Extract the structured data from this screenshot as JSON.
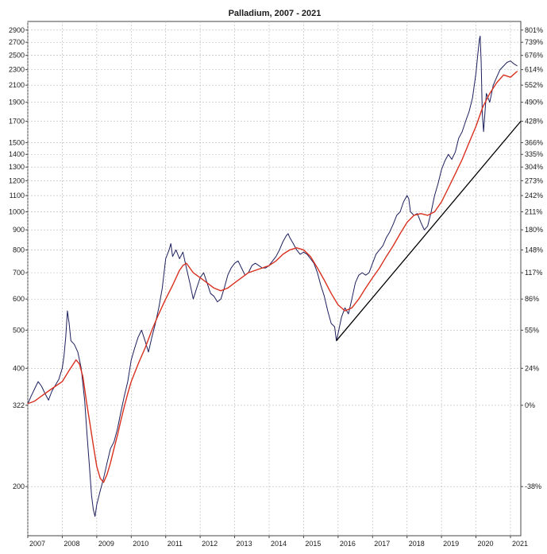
{
  "chart_data": {
    "type": "line",
    "title": "Palladium, 2007 - 2021",
    "y_scale": "log",
    "ylim": [
      150,
      3050
    ],
    "xlim": [
      2007.0,
      2021.3
    ],
    "grid": true,
    "x_ticks": [
      {
        "x": 2007,
        "label": "2007"
      },
      {
        "x": 2008,
        "label": "2008"
      },
      {
        "x": 2009,
        "label": "2009"
      },
      {
        "x": 2010,
        "label": "2010"
      },
      {
        "x": 2011,
        "label": "2011"
      },
      {
        "x": 2012,
        "label": "2012"
      },
      {
        "x": 2013,
        "label": "2013"
      },
      {
        "x": 2014,
        "label": "2014"
      },
      {
        "x": 2015,
        "label": "2015"
      },
      {
        "x": 2016,
        "label": "2016"
      },
      {
        "x": 2017,
        "label": "2017"
      },
      {
        "x": 2018,
        "label": "2018"
      },
      {
        "x": 2019,
        "label": "2019"
      },
      {
        "x": 2020,
        "label": "2020"
      },
      {
        "x": 2021,
        "label": "2021"
      }
    ],
    "y_ticks_left": [
      {
        "v": 2900,
        "label": "2900"
      },
      {
        "v": 2700,
        "label": "2700"
      },
      {
        "v": 2500,
        "label": "2500"
      },
      {
        "v": 2300,
        "label": "2300"
      },
      {
        "v": 2100,
        "label": "2100"
      },
      {
        "v": 1900,
        "label": "1900"
      },
      {
        "v": 1700,
        "label": "1700"
      },
      {
        "v": 1500,
        "label": "1500"
      },
      {
        "v": 1400,
        "label": "1400"
      },
      {
        "v": 1300,
        "label": "1300"
      },
      {
        "v": 1200,
        "label": "1200"
      },
      {
        "v": 1100,
        "label": "1100"
      },
      {
        "v": 1000,
        "label": "1000"
      },
      {
        "v": 900,
        "label": "900"
      },
      {
        "v": 800,
        "label": "800"
      },
      {
        "v": 700,
        "label": "700"
      },
      {
        "v": 600,
        "label": "600"
      },
      {
        "v": 500,
        "label": "500"
      },
      {
        "v": 400,
        "label": "400"
      },
      {
        "v": 322,
        "label": "322"
      },
      {
        "v": 200,
        "label": "200"
      }
    ],
    "y_ticks_right": [
      {
        "v": 2900,
        "label": "801%"
      },
      {
        "v": 2700,
        "label": "739%"
      },
      {
        "v": 2500,
        "label": "676%"
      },
      {
        "v": 2300,
        "label": "614%"
      },
      {
        "v": 2100,
        "label": "552%"
      },
      {
        "v": 1900,
        "label": "490%"
      },
      {
        "v": 1700,
        "label": "428%"
      },
      {
        "v": 1500,
        "label": "366%"
      },
      {
        "v": 1400,
        "label": "335%"
      },
      {
        "v": 1300,
        "label": "304%"
      },
      {
        "v": 1200,
        "label": "273%"
      },
      {
        "v": 1100,
        "label": "242%"
      },
      {
        "v": 1000,
        "label": "211%"
      },
      {
        "v": 900,
        "label": "180%"
      },
      {
        "v": 800,
        "label": "148%"
      },
      {
        "v": 700,
        "label": "117%"
      },
      {
        "v": 600,
        "label": "86%"
      },
      {
        "v": 500,
        "label": "55%"
      },
      {
        "v": 400,
        "label": "24%"
      },
      {
        "v": 322,
        "label": "0%"
      },
      {
        "v": 200,
        "label": "-38%"
      }
    ],
    "series": [
      {
        "color": "#1c1f5c",
        "points": [
          [
            2007.0,
            325
          ],
          [
            2007.1,
            340
          ],
          [
            2007.2,
            355
          ],
          [
            2007.3,
            370
          ],
          [
            2007.4,
            360
          ],
          [
            2007.5,
            345
          ],
          [
            2007.6,
            332
          ],
          [
            2007.7,
            350
          ],
          [
            2007.8,
            362
          ],
          [
            2007.9,
            375
          ],
          [
            2008.0,
            400
          ],
          [
            2008.05,
            430
          ],
          [
            2008.1,
            480
          ],
          [
            2008.15,
            560
          ],
          [
            2008.2,
            520
          ],
          [
            2008.25,
            470
          ],
          [
            2008.35,
            460
          ],
          [
            2008.45,
            440
          ],
          [
            2008.55,
            400
          ],
          [
            2008.65,
            330
          ],
          [
            2008.72,
            270
          ],
          [
            2008.78,
            230
          ],
          [
            2008.85,
            190
          ],
          [
            2008.9,
            175
          ],
          [
            2008.95,
            168
          ],
          [
            2009.0,
            180
          ],
          [
            2009.1,
            195
          ],
          [
            2009.2,
            210
          ],
          [
            2009.3,
            230
          ],
          [
            2009.4,
            250
          ],
          [
            2009.5,
            260
          ],
          [
            2009.6,
            280
          ],
          [
            2009.7,
            310
          ],
          [
            2009.8,
            340
          ],
          [
            2009.9,
            370
          ],
          [
            2010.0,
            420
          ],
          [
            2010.1,
            450
          ],
          [
            2010.2,
            480
          ],
          [
            2010.3,
            500
          ],
          [
            2010.4,
            470
          ],
          [
            2010.5,
            440
          ],
          [
            2010.6,
            480
          ],
          [
            2010.7,
            520
          ],
          [
            2010.8,
            570
          ],
          [
            2010.9,
            640
          ],
          [
            2011.0,
            760
          ],
          [
            2011.1,
            800
          ],
          [
            2011.15,
            830
          ],
          [
            2011.2,
            770
          ],
          [
            2011.3,
            800
          ],
          [
            2011.4,
            760
          ],
          [
            2011.5,
            790
          ],
          [
            2011.6,
            720
          ],
          [
            2011.7,
            660
          ],
          [
            2011.8,
            600
          ],
          [
            2011.9,
            640
          ],
          [
            2012.0,
            680
          ],
          [
            2012.1,
            700
          ],
          [
            2012.2,
            660
          ],
          [
            2012.3,
            620
          ],
          [
            2012.4,
            610
          ],
          [
            2012.5,
            590
          ],
          [
            2012.6,
            600
          ],
          [
            2012.7,
            640
          ],
          [
            2012.8,
            690
          ],
          [
            2012.9,
            720
          ],
          [
            2013.0,
            740
          ],
          [
            2013.1,
            750
          ],
          [
            2013.2,
            720
          ],
          [
            2013.3,
            690
          ],
          [
            2013.4,
            700
          ],
          [
            2013.5,
            730
          ],
          [
            2013.6,
            740
          ],
          [
            2013.7,
            730
          ],
          [
            2013.8,
            720
          ],
          [
            2013.9,
            720
          ],
          [
            2014.0,
            730
          ],
          [
            2014.1,
            750
          ],
          [
            2014.2,
            770
          ],
          [
            2014.3,
            800
          ],
          [
            2014.4,
            840
          ],
          [
            2014.5,
            870
          ],
          [
            2014.55,
            880
          ],
          [
            2014.6,
            860
          ],
          [
            2014.7,
            830
          ],
          [
            2014.8,
            800
          ],
          [
            2014.9,
            780
          ],
          [
            2015.0,
            790
          ],
          [
            2015.1,
            780
          ],
          [
            2015.2,
            760
          ],
          [
            2015.3,
            740
          ],
          [
            2015.4,
            700
          ],
          [
            2015.5,
            650
          ],
          [
            2015.6,
            610
          ],
          [
            2015.7,
            560
          ],
          [
            2015.8,
            520
          ],
          [
            2015.9,
            510
          ],
          [
            2015.95,
            470
          ],
          [
            2016.0,
            490
          ],
          [
            2016.1,
            540
          ],
          [
            2016.2,
            570
          ],
          [
            2016.3,
            550
          ],
          [
            2016.4,
            600
          ],
          [
            2016.5,
            660
          ],
          [
            2016.6,
            690
          ],
          [
            2016.7,
            700
          ],
          [
            2016.8,
            690
          ],
          [
            2016.9,
            700
          ],
          [
            2017.0,
            740
          ],
          [
            2017.1,
            780
          ],
          [
            2017.2,
            800
          ],
          [
            2017.3,
            820
          ],
          [
            2017.4,
            860
          ],
          [
            2017.5,
            890
          ],
          [
            2017.6,
            930
          ],
          [
            2017.7,
            980
          ],
          [
            2017.8,
            1000
          ],
          [
            2017.9,
            1060
          ],
          [
            2018.0,
            1100
          ],
          [
            2018.05,
            1080
          ],
          [
            2018.1,
            1000
          ],
          [
            2018.2,
            980
          ],
          [
            2018.3,
            990
          ],
          [
            2018.4,
            940
          ],
          [
            2018.5,
            900
          ],
          [
            2018.6,
            920
          ],
          [
            2018.7,
            1000
          ],
          [
            2018.8,
            1100
          ],
          [
            2018.9,
            1180
          ],
          [
            2019.0,
            1280
          ],
          [
            2019.1,
            1350
          ],
          [
            2019.2,
            1400
          ],
          [
            2019.3,
            1360
          ],
          [
            2019.4,
            1420
          ],
          [
            2019.5,
            1540
          ],
          [
            2019.6,
            1600
          ],
          [
            2019.7,
            1700
          ],
          [
            2019.8,
            1800
          ],
          [
            2019.9,
            1950
          ],
          [
            2020.0,
            2250
          ],
          [
            2020.05,
            2500
          ],
          [
            2020.1,
            2750
          ],
          [
            2020.12,
            2800
          ],
          [
            2020.15,
            2400
          ],
          [
            2020.18,
            1800
          ],
          [
            2020.22,
            1600
          ],
          [
            2020.3,
            2000
          ],
          [
            2020.4,
            1900
          ],
          [
            2020.5,
            2100
          ],
          [
            2020.6,
            2200
          ],
          [
            2020.7,
            2300
          ],
          [
            2020.8,
            2350
          ],
          [
            2020.9,
            2400
          ],
          [
            2021.0,
            2420
          ],
          [
            2021.1,
            2380
          ],
          [
            2021.2,
            2350
          ]
        ]
      },
      {
        "color": "#d9301f",
        "points": [
          [
            2007.0,
            325
          ],
          [
            2007.2,
            330
          ],
          [
            2007.4,
            340
          ],
          [
            2007.6,
            350
          ],
          [
            2007.8,
            360
          ],
          [
            2008.0,
            370
          ],
          [
            2008.2,
            395
          ],
          [
            2008.4,
            420
          ],
          [
            2008.5,
            410
          ],
          [
            2008.6,
            380
          ],
          [
            2008.7,
            330
          ],
          [
            2008.8,
            290
          ],
          [
            2008.9,
            255
          ],
          [
            2009.0,
            225
          ],
          [
            2009.1,
            210
          ],
          [
            2009.2,
            205
          ],
          [
            2009.3,
            215
          ],
          [
            2009.4,
            230
          ],
          [
            2009.5,
            250
          ],
          [
            2009.6,
            270
          ],
          [
            2009.7,
            295
          ],
          [
            2009.8,
            320
          ],
          [
            2009.9,
            345
          ],
          [
            2010.0,
            370
          ],
          [
            2010.2,
            410
          ],
          [
            2010.4,
            450
          ],
          [
            2010.6,
            500
          ],
          [
            2010.8,
            550
          ],
          [
            2011.0,
            600
          ],
          [
            2011.2,
            650
          ],
          [
            2011.4,
            710
          ],
          [
            2011.5,
            730
          ],
          [
            2011.6,
            740
          ],
          [
            2011.7,
            720
          ],
          [
            2011.8,
            700
          ],
          [
            2012.0,
            680
          ],
          [
            2012.2,
            660
          ],
          [
            2012.4,
            640
          ],
          [
            2012.6,
            630
          ],
          [
            2012.8,
            640
          ],
          [
            2013.0,
            660
          ],
          [
            2013.2,
            680
          ],
          [
            2013.4,
            700
          ],
          [
            2013.6,
            710
          ],
          [
            2013.8,
            720
          ],
          [
            2014.0,
            730
          ],
          [
            2014.2,
            750
          ],
          [
            2014.4,
            780
          ],
          [
            2014.6,
            800
          ],
          [
            2014.8,
            810
          ],
          [
            2015.0,
            800
          ],
          [
            2015.2,
            770
          ],
          [
            2015.4,
            720
          ],
          [
            2015.6,
            670
          ],
          [
            2015.8,
            620
          ],
          [
            2016.0,
            580
          ],
          [
            2016.2,
            560
          ],
          [
            2016.4,
            570
          ],
          [
            2016.6,
            600
          ],
          [
            2016.8,
            640
          ],
          [
            2017.0,
            680
          ],
          [
            2017.2,
            720
          ],
          [
            2017.4,
            770
          ],
          [
            2017.6,
            820
          ],
          [
            2017.8,
            880
          ],
          [
            2018.0,
            940
          ],
          [
            2018.2,
            980
          ],
          [
            2018.4,
            990
          ],
          [
            2018.6,
            980
          ],
          [
            2018.8,
            1000
          ],
          [
            2019.0,
            1060
          ],
          [
            2019.2,
            1150
          ],
          [
            2019.4,
            1250
          ],
          [
            2019.6,
            1360
          ],
          [
            2019.8,
            1500
          ],
          [
            2020.0,
            1650
          ],
          [
            2020.2,
            1850
          ],
          [
            2020.4,
            2000
          ],
          [
            2020.6,
            2130
          ],
          [
            2020.8,
            2230
          ],
          [
            2021.0,
            2200
          ],
          [
            2021.2,
            2280
          ]
        ]
      },
      {
        "color": "#000000",
        "points": [
          [
            2015.95,
            470
          ],
          [
            2021.3,
            1700
          ]
        ]
      }
    ]
  }
}
